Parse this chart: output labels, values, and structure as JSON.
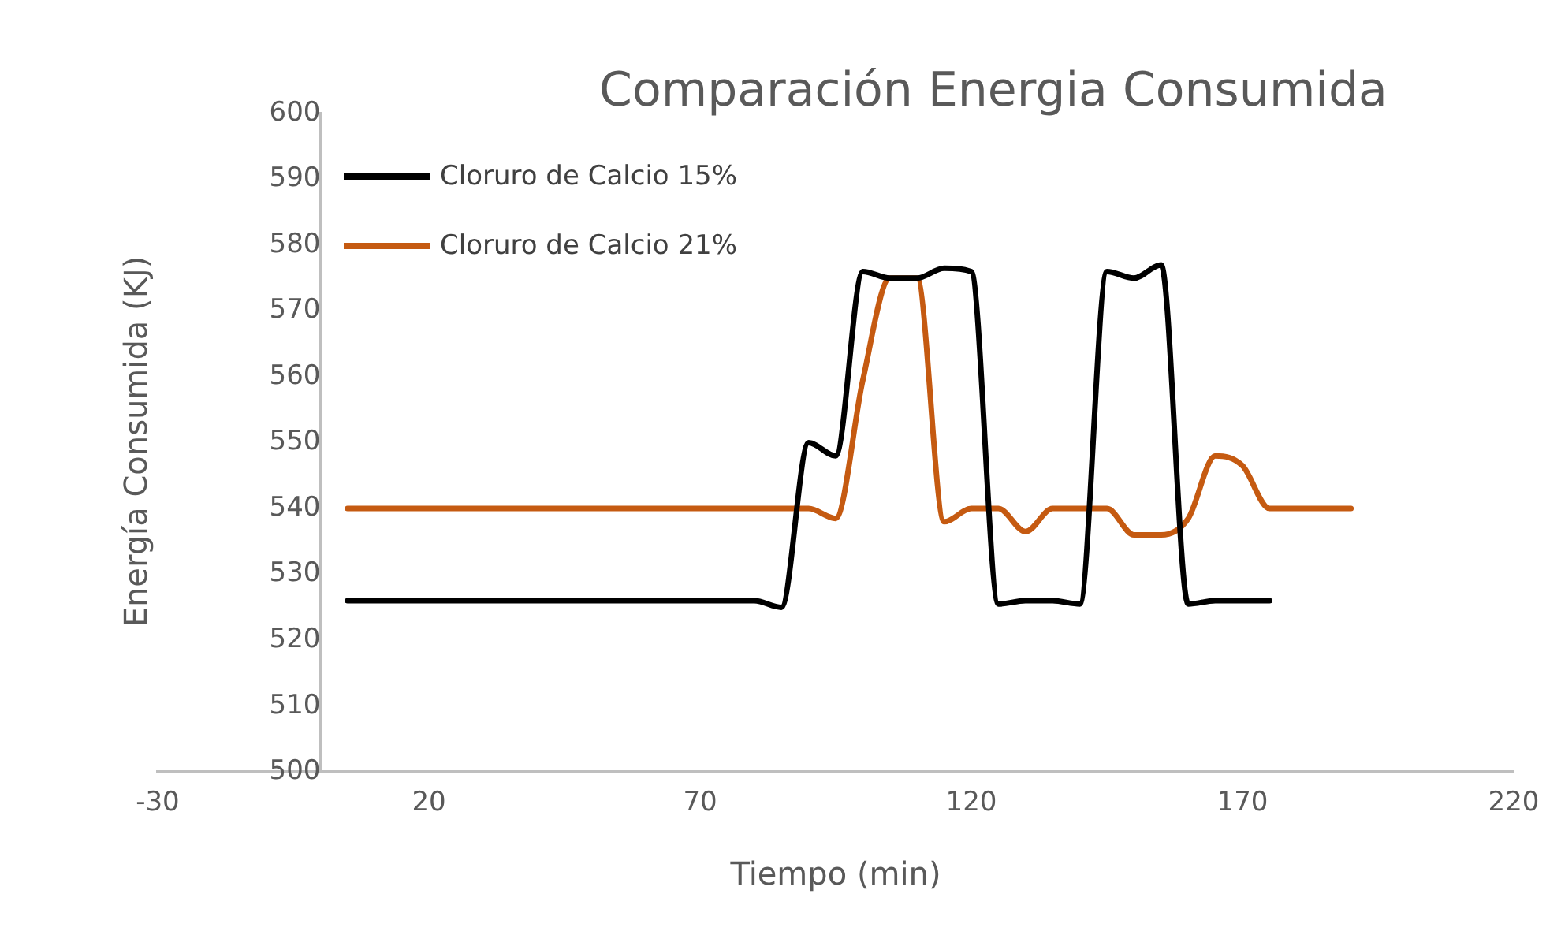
{
  "chart_data": {
    "type": "line",
    "title": "Comparación Energia Consumida",
    "xlabel": "Tiempo (min)",
    "ylabel": "Energía Consumida (KJ)",
    "xlim": [
      -30,
      220
    ],
    "xticks": [
      -30,
      20,
      70,
      120,
      170,
      220
    ],
    "ylim": [
      500,
      600
    ],
    "yticks": [
      500,
      510,
      520,
      530,
      540,
      550,
      560,
      570,
      580,
      590,
      600
    ],
    "grid": false,
    "legend": "top left",
    "marker": "none",
    "line_style": "solid",
    "series": [
      {
        "name": "Cloruro de Calcio 15%",
        "color": "#000000",
        "x": [
          5,
          10,
          15,
          20,
          25,
          30,
          35,
          40,
          45,
          50,
          55,
          60,
          65,
          70,
          75,
          80,
          85,
          90,
          95,
          100,
          105,
          110,
          115,
          120,
          125,
          130,
          135,
          140,
          145,
          150,
          155,
          160,
          165,
          170,
          175
        ],
        "values": [
          526,
          526,
          526,
          526,
          526,
          526,
          526,
          526,
          526,
          526,
          526,
          526,
          526,
          526,
          526,
          526,
          525,
          550,
          548,
          576,
          575,
          575,
          576.5,
          576,
          525.5,
          526,
          526,
          525.5,
          576,
          575,
          577,
          525.5,
          526,
          526,
          526
        ]
      },
      {
        "name": "Cloruro de Calcio 21%",
        "color": "#c55a11",
        "x": [
          5,
          10,
          15,
          20,
          25,
          30,
          35,
          40,
          45,
          50,
          55,
          60,
          65,
          70,
          75,
          80,
          85,
          90,
          95,
          100,
          105,
          110,
          115,
          120,
          125,
          130,
          135,
          140,
          145,
          150,
          155,
          160,
          165,
          170,
          175,
          180,
          185,
          190
        ],
        "values": [
          540,
          540,
          540,
          540,
          540,
          540,
          540,
          540,
          540,
          540,
          540,
          540,
          540,
          540,
          540,
          540,
          540,
          540,
          538.5,
          559.5,
          575,
          575,
          538,
          540,
          540,
          536.5,
          540,
          540,
          540,
          536,
          536,
          538.5,
          548,
          546.5,
          540,
          540,
          540,
          540
        ]
      }
    ]
  }
}
